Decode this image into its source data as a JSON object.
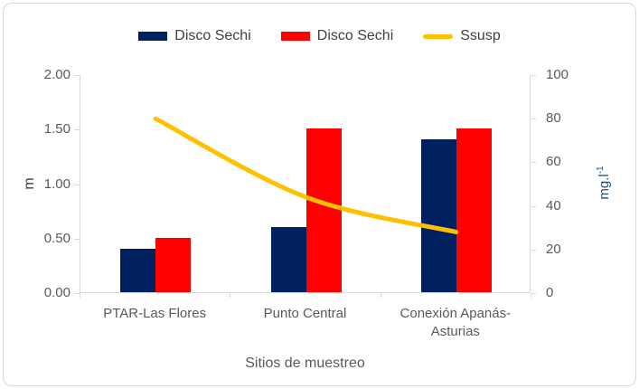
{
  "chart_data": {
    "type": "bar",
    "subtype": "clustered-bars-with-line-dual-axis",
    "categories": [
      "PTAR-Las Flores",
      "Punto Central",
      "Conexión Apanás-Asturias"
    ],
    "series": [
      {
        "name": "Disco Sechi",
        "kind": "bar",
        "color": "#002060",
        "axis": "left",
        "values": [
          0.4,
          0.6,
          1.4
        ]
      },
      {
        "name": "Disco Sechi",
        "kind": "bar",
        "color": "#FF0000",
        "axis": "left",
        "values": [
          0.5,
          1.5,
          1.5
        ]
      },
      {
        "name": "Ssusp",
        "kind": "line",
        "color": "#FFC000",
        "axis": "right",
        "values": [
          80,
          44,
          28
        ]
      }
    ],
    "title": "",
    "xlabel": "Sitios de muestreo",
    "ylabel_left": "m",
    "ylabel_right": "mg.l⁻¹",
    "ylabel_right_base": "mg.l",
    "ylabel_right_sup": "-1",
    "ylim_left": [
      0,
      2
    ],
    "ylim_right": [
      0,
      100
    ],
    "yticks_left": [
      "0.00",
      "0.50",
      "1.00",
      "1.50",
      "2.00"
    ],
    "yticks_right": [
      "0",
      "20",
      "40",
      "60",
      "80",
      "100"
    ],
    "grid": false,
    "legend_position": "top",
    "line_smooth": true
  },
  "colors": {
    "axis_line": "#D9D9D9",
    "tick_label": "#595959",
    "legend_text": "#404040",
    "left_axis_title": "#404040",
    "right_axis_title": "#1F4E79",
    "chart_border": "#D9D9D9"
  }
}
